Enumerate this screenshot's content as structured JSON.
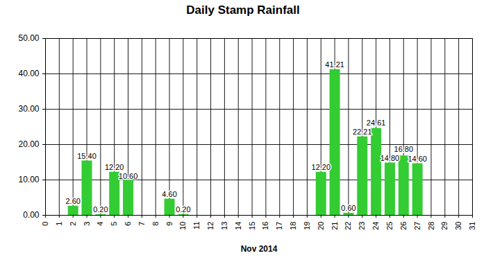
{
  "chart_data": {
    "type": "bar",
    "title": "Daily Stamp Rainfall",
    "xlabel": "Nov 2014",
    "x": [
      2,
      3,
      4,
      5,
      6,
      9,
      10,
      20,
      21,
      22,
      23,
      24,
      25,
      26,
      27
    ],
    "values": [
      2.6,
      15.4,
      0.2,
      12.2,
      10.6,
      4.6,
      0.2,
      12.2,
      41.21,
      0.6,
      22.21,
      24.61,
      14.8,
      16.8,
      14.6
    ],
    "value_labels": [
      "2.60",
      "15.40",
      "0.20",
      "12.20",
      "10.60",
      "4.60",
      "0.20",
      "12.20",
      "41.21",
      "0.60",
      "22.21",
      "24.61",
      "14.80",
      "16.80",
      "14.60"
    ],
    "color": "#33cc33",
    "xlim": [
      0,
      31
    ],
    "xticks": [
      0,
      1,
      2,
      3,
      4,
      5,
      6,
      7,
      8,
      9,
      10,
      11,
      12,
      13,
      14,
      15,
      16,
      17,
      18,
      19,
      20,
      21,
      22,
      23,
      24,
      25,
      26,
      27,
      28,
      29,
      30,
      31
    ],
    "ylim": [
      0,
      50
    ],
    "yticks": [
      {
        "value": 0,
        "label": "0.00"
      },
      {
        "value": 10,
        "label": "10.00"
      },
      {
        "value": 20,
        "label": "20.00"
      },
      {
        "value": 30,
        "label": "30.00"
      },
      {
        "value": 40,
        "label": "40.00"
      },
      {
        "value": 50,
        "label": "50.00"
      }
    ],
    "grid": true,
    "data_labels": true
  }
}
